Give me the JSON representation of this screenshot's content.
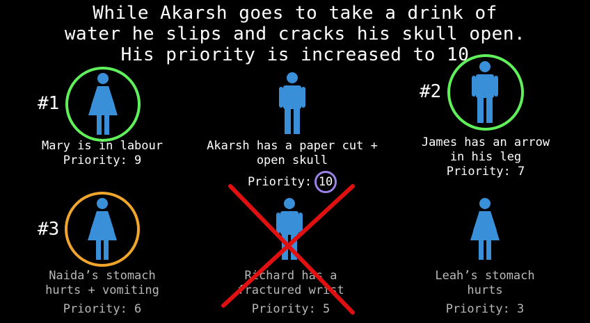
{
  "title": {
    "line1": "While Akarsh goes to take a drink of",
    "line2": "water he slips and cracks his skull open.",
    "line3": "His priority is increased to 10"
  },
  "colors": {
    "figure": "#3a8fd9",
    "ring_green": "#5ff05a",
    "ring_orange": "#f0a52d",
    "ring_purple": "#9a82e6",
    "cross_red": "#e01010"
  },
  "patients": [
    {
      "rank": "#1",
      "line1": "Mary is in labour",
      "line2": "",
      "priority": "Priority: 9",
      "icon": "female-figure-icon"
    },
    {
      "rank": "",
      "line1": "Akarsh has a paper cut +",
      "line2": "open skull",
      "priority_label": "Priority:",
      "priority_value": "10",
      "icon": "male-figure-icon"
    },
    {
      "rank": "#2",
      "line1": "James has an arrow",
      "line2": "in his leg",
      "priority": "Priority: 7",
      "icon": "male-figure-icon"
    },
    {
      "rank": "#3",
      "line1": "Naida’s stomach",
      "line2": "hurts + vomiting",
      "priority": "Priority: 6",
      "icon": "female-figure-icon"
    },
    {
      "rank": "",
      "line1": "Richard has a",
      "line2": "fractured wrist",
      "priority": "Priority: 5",
      "icon": "male-figure-icon"
    },
    {
      "rank": "",
      "line1": "Leah’s stomach",
      "line2": "hurts",
      "priority": "Priority: 3",
      "icon": "female-figure-icon"
    }
  ]
}
